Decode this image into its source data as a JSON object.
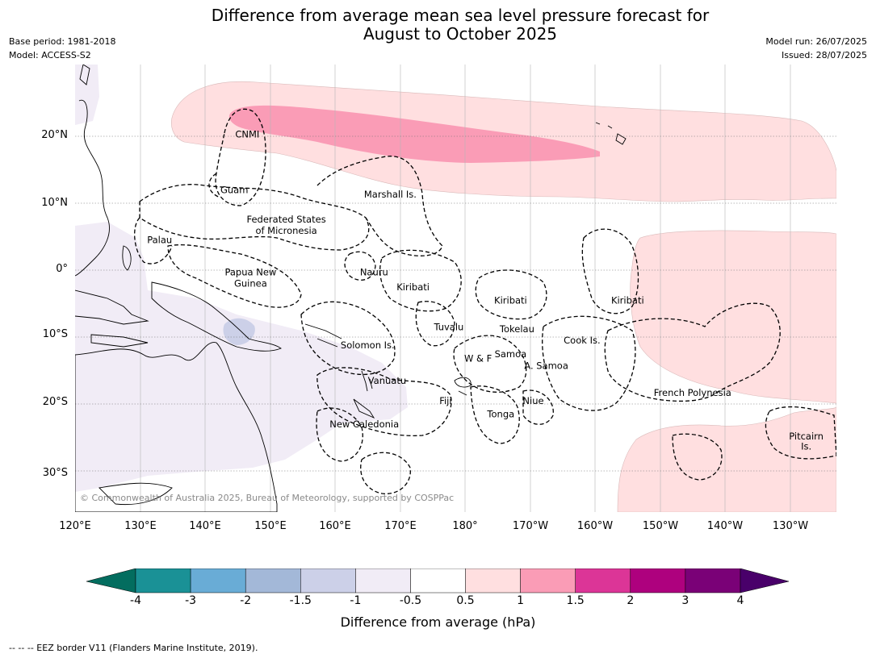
{
  "title_line1": "Difference from average mean sea level pressure forecast for",
  "title_line2": "August to October 2025",
  "base_period": "Base period: 1981-2018",
  "model": "Model: ACCESS-S2",
  "model_run": "Model run: 26/07/2025",
  "issued": "Issued: 28/07/2025",
  "copyright": "© Commonwealth of Australia 2025, Bureau of Meteorology, supported by COSPPac",
  "latitude_labels": [
    "20°N",
    "10°N",
    "0°",
    "10°S",
    "20°S",
    "30°S"
  ],
  "longitude_labels": [
    "120°E",
    "130°E",
    "140°E",
    "150°E",
    "160°E",
    "170°E",
    "180°",
    "170°W",
    "160°W",
    "150°W",
    "140°W",
    "130°W"
  ],
  "places": [
    {
      "name": "CNMI",
      "lon": 146.5,
      "lat": 20.3
    },
    {
      "name": "Guam",
      "lon": 144.5,
      "lat": 12.0
    },
    {
      "name": "Marshall Is.",
      "lon": 168.5,
      "lat": 11.3
    },
    {
      "name": "Federated States",
      "lon": 152.5,
      "lat": 7.6
    },
    {
      "name": "of Micronesia",
      "lon": 152.5,
      "lat": 5.9
    },
    {
      "name": "Palau",
      "lon": 133.0,
      "lat": 4.5
    },
    {
      "name": "Papua New",
      "lon": 147.0,
      "lat": -0.3
    },
    {
      "name": "Guinea",
      "lon": 147.0,
      "lat": -2.0
    },
    {
      "name": "Nauru",
      "lon": 166.0,
      "lat": -0.3
    },
    {
      "name": "Kiribati",
      "lon": 172.0,
      "lat": -2.5
    },
    {
      "name": "Kiribati",
      "lon": 187.0,
      "lat": -4.5
    },
    {
      "name": "Kiribati",
      "lon": 205.0,
      "lat": -4.5
    },
    {
      "name": "Tuvalu",
      "lon": 177.5,
      "lat": -8.5
    },
    {
      "name": "Tokelau",
      "lon": 188.0,
      "lat": -8.8
    },
    {
      "name": "Solomon Is.",
      "lon": 165.0,
      "lat": -11.2
    },
    {
      "name": "Cook Is.",
      "lon": 198.0,
      "lat": -10.5
    },
    {
      "name": "Samoa",
      "lon": 187.0,
      "lat": -12.5
    },
    {
      "name": "W & F",
      "lon": 182.0,
      "lat": -13.2
    },
    {
      "name": "A. Samoa",
      "lon": 192.5,
      "lat": -14.3
    },
    {
      "name": "Vanuatu",
      "lon": 168.0,
      "lat": -16.5
    },
    {
      "name": "Fiji",
      "lon": 177.0,
      "lat": -19.5
    },
    {
      "name": "Niue",
      "lon": 190.5,
      "lat": -19.5
    },
    {
      "name": "Tonga",
      "lon": 185.5,
      "lat": -21.5
    },
    {
      "name": "French Polynesia",
      "lon": 215.0,
      "lat": -18.3
    },
    {
      "name": "New Caledonia",
      "lon": 164.5,
      "lat": -23.0
    },
    {
      "name": "Pitcairn",
      "lon": 232.5,
      "lat": -24.8
    },
    {
      "name": "Is.",
      "lon": 232.5,
      "lat": -26.3
    }
  ],
  "colorbar": {
    "ticks": [
      "-4",
      "-3",
      "-2",
      "-1.5",
      "-1",
      "-0.5",
      "0.5",
      "1",
      "1.5",
      "2",
      "3",
      "4"
    ],
    "colors": [
      "#1a9196",
      "#69acd6",
      "#a3b8d8",
      "#ccd0e8",
      "#f1ecf6",
      "#ffffff",
      "#ffdfe0",
      "#fa9cb6",
      "#dc3597",
      "#ae017e",
      "#7a0177"
    ],
    "under_color": "#036d5f",
    "over_color": "#49006a",
    "label": "Difference from average (hPa)"
  },
  "footnote": "--  --  -- EEZ border V11 (Flanders Marine Institute, 2019)."
}
